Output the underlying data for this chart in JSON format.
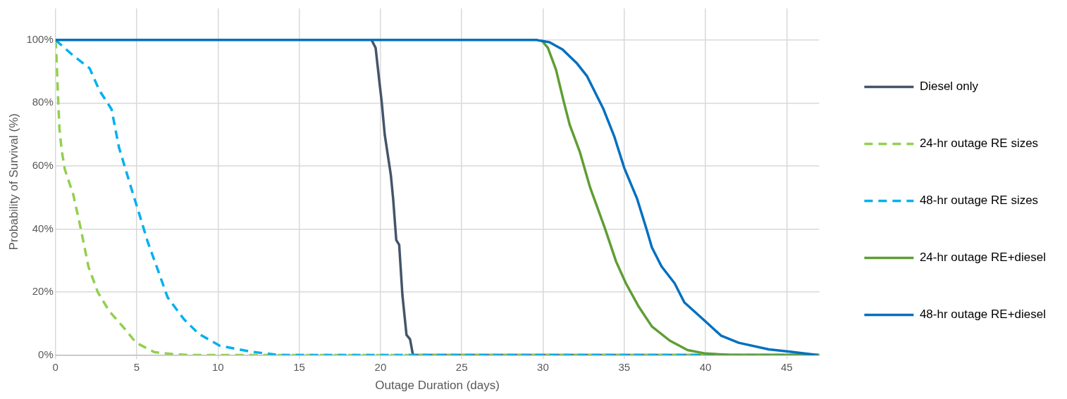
{
  "chart_data": {
    "type": "line",
    "xlabel": "Outage Duration (days)",
    "ylabel": "Probability of Survival (%)",
    "xlim": [
      0,
      47
    ],
    "ylim": [
      0,
      110
    ],
    "xticks": [
      0,
      5,
      10,
      15,
      20,
      25,
      30,
      35,
      40,
      45
    ],
    "yticks": [
      {
        "value": 0,
        "label": "0%"
      },
      {
        "value": 20,
        "label": "20%"
      },
      {
        "value": 40,
        "label": "40%"
      },
      {
        "value": 60,
        "label": "60%"
      },
      {
        "value": 80,
        "label": "80%"
      },
      {
        "value": 100,
        "label": "100%"
      }
    ],
    "grid": true,
    "legend": "right",
    "marker": "none",
    "series": [
      {
        "name": "Diesel only",
        "color": "#44546a",
        "line_style": "solid",
        "x": [
          19.45,
          19.7,
          19.93,
          20.07,
          20.26,
          20.64,
          20.78,
          20.97,
          21.15,
          21.35,
          21.6,
          21.82,
          22.0,
          47
        ],
        "values": [
          100,
          97.5,
          86.8,
          80.6,
          70,
          57,
          49.5,
          36.5,
          35,
          19,
          6.4,
          5,
          0,
          0
        ]
      },
      {
        "name": "24-hr outage RE sizes",
        "color": "#92d050",
        "line_style": "dashed",
        "x": [
          0,
          0.05,
          0.14,
          0.24,
          0.38,
          0.57,
          1.09,
          1.56,
          2.03,
          2.6,
          3.3,
          4.25,
          4.96,
          6.1,
          7.4,
          8.5,
          47
        ],
        "values": [
          100,
          96,
          84,
          72,
          65,
          59,
          51,
          40,
          28,
          20,
          14,
          8.4,
          3.9,
          0.9,
          0.2,
          0,
          0
        ]
      },
      {
        "name": "48-hr outage RE sizes",
        "color": "#00b0f0",
        "line_style": "dashed",
        "x": [
          0,
          1.1,
          2.1,
          2.7,
          3.45,
          3.9,
          4.6,
          5.2,
          5.67,
          6.3,
          6.9,
          7.9,
          8.8,
          10.1,
          12,
          13.8,
          47
        ],
        "values": [
          100,
          95,
          91,
          84,
          78,
          66,
          54,
          44,
          36,
          27,
          18.3,
          11.4,
          6.8,
          3,
          1.1,
          0,
          0
        ]
      },
      {
        "name": "24-hr outage RE+diesel",
        "color": "#5f9e34",
        "line_style": "solid",
        "x": [
          29.9,
          30.3,
          30.8,
          31.27,
          31.65,
          32.26,
          32.9,
          33.8,
          34.5,
          35.1,
          35.9,
          36.7,
          37.8,
          38.9,
          40,
          41.7,
          47
        ],
        "values": [
          100,
          97.5,
          90.6,
          80.6,
          73,
          64.6,
          53.2,
          40.4,
          29.7,
          22.8,
          15.3,
          9.1,
          4.6,
          1.6,
          0.5,
          0,
          0
        ]
      },
      {
        "name": "48-hr outage RE+diesel",
        "color": "#0070c0",
        "line_style": "solid",
        "x": [
          0,
          29.6,
          30.4,
          31.2,
          32.1,
          32.7,
          33.1,
          33.7,
          34.4,
          35,
          35.8,
          36.4,
          36.7,
          37.3,
          38.1,
          38.7,
          40,
          40.95,
          42.05,
          43.9,
          45.2,
          46.9
        ],
        "values": [
          100,
          100,
          99.3,
          97,
          92.5,
          88.6,
          84.5,
          78.3,
          69.2,
          59.4,
          49.5,
          39.5,
          34.2,
          28.1,
          22.8,
          16.7,
          10.7,
          6.2,
          3.9,
          1.8,
          1.1,
          0
        ]
      }
    ]
  }
}
